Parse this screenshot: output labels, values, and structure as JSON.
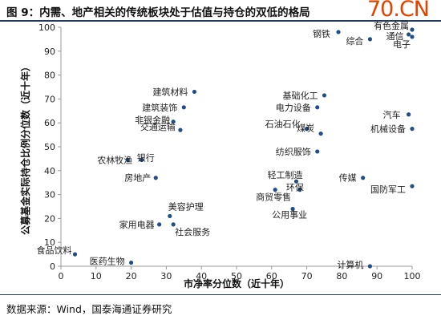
{
  "header": {
    "title": "图 9：内需、地产相关的传统板块处于估值与持仓的双低的格局",
    "watermark": "70.CN"
  },
  "footer": {
    "source": "数据来源：Wind，国泰海通证券研究"
  },
  "colors": {
    "point": "#1f4e89",
    "rule": "#1f3a66",
    "axis": "#999999",
    "watermark": "#e04500"
  },
  "chart_data": {
    "type": "scatter",
    "title": "",
    "xlabel": "市净率分位数（近十年）",
    "ylabel": "公募基金实际持仓比例分位数（近十年）",
    "xlim": [
      0,
      100
    ],
    "ylim": [
      0,
      100
    ],
    "xticks": [
      0,
      10,
      20,
      30,
      40,
      50,
      60,
      70,
      80,
      90,
      100
    ],
    "yticks": [
      0,
      10,
      20,
      30,
      40,
      50,
      60,
      70,
      80,
      90,
      100
    ],
    "grid": false,
    "points": [
      {
        "label": "钢铁",
        "x": 79,
        "y": 98
      },
      {
        "label": "有色金属",
        "x": 100,
        "y": 99
      },
      {
        "label": "综合",
        "x": 88,
        "y": 95
      },
      {
        "label": "通信",
        "x": 99,
        "y": 97
      },
      {
        "label": "电子",
        "x": 100,
        "y": 96
      },
      {
        "label": "建筑材料",
        "x": 38,
        "y": 73
      },
      {
        "label": "建筑装饰",
        "x": 35,
        "y": 66.5
      },
      {
        "label": "非银金融",
        "x": 32,
        "y": 60.5
      },
      {
        "label": "交通运输",
        "x": 34,
        "y": 57
      },
      {
        "label": "基础化工",
        "x": 75,
        "y": 71.5
      },
      {
        "label": "电力设备",
        "x": 73,
        "y": 66.5
      },
      {
        "label": "石油石化",
        "x": 70,
        "y": 57.5
      },
      {
        "label": "煤炭",
        "x": 74,
        "y": 55.5
      },
      {
        "label": "纺织服饰",
        "x": 73,
        "y": 48
      },
      {
        "label": "汽车",
        "x": 99,
        "y": 63.5
      },
      {
        "label": "机械设备",
        "x": 100,
        "y": 57.5
      },
      {
        "label": "农林牧渔",
        "x": 19,
        "y": 44.5
      },
      {
        "label": "银行",
        "x": 23,
        "y": 44.5
      },
      {
        "label": "房地产",
        "x": 27,
        "y": 37
      },
      {
        "label": "轻工制造",
        "x": 67,
        "y": 35.5
      },
      {
        "label": "环保",
        "x": 68,
        "y": 32
      },
      {
        "label": "商贸零售",
        "x": 61,
        "y": 32
      },
      {
        "label": "公用事业",
        "x": 66,
        "y": 24
      },
      {
        "label": "传媒",
        "x": 86,
        "y": 37
      },
      {
        "label": "国防军工",
        "x": 100,
        "y": 33.5
      },
      {
        "label": "美容护理",
        "x": 31,
        "y": 21
      },
      {
        "label": "家用电器",
        "x": 28,
        "y": 17.5
      },
      {
        "label": "社会服务",
        "x": 32,
        "y": 17.5
      },
      {
        "label": "食品饮料",
        "x": 4,
        "y": 5
      },
      {
        "label": "医药生物",
        "x": 20,
        "y": 1.5
      },
      {
        "label": "计算机",
        "x": 88,
        "y": 0
      }
    ]
  }
}
